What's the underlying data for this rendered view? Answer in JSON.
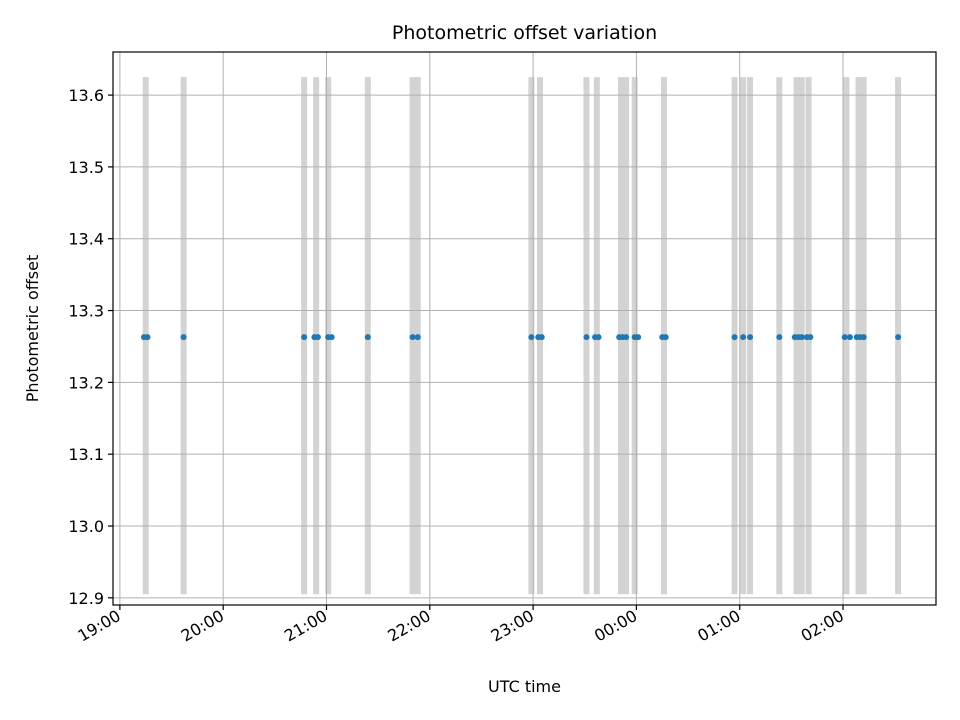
{
  "chart_data": {
    "type": "scatter",
    "title": "Photometric offset variation",
    "xlabel": "UTC time",
    "ylabel": "Photometric offset",
    "x_tick_labels": [
      "19:00",
      "20:00",
      "21:00",
      "22:00",
      "23:00",
      "00:00",
      "01:00",
      "02:00"
    ],
    "y_tick_labels": [
      "12.9",
      "13.0",
      "13.1",
      "13.2",
      "13.3",
      "13.4",
      "13.5",
      "13.6"
    ],
    "xlim": [
      "18:56",
      "02:54"
    ],
    "ylim": [
      12.89,
      13.66
    ],
    "grid": true,
    "band_range": [
      12.905,
      13.625
    ],
    "bands_x": [
      "19:15",
      "19:37",
      "20:47",
      "20:54",
      "21:01",
      "21:24",
      "21:50",
      "21:53",
      "22:59",
      "23:04",
      "23:31",
      "23:37",
      "23:51",
      "23:54",
      "23:59",
      "00:16",
      "00:57",
      "01:02",
      "01:06",
      "01:23",
      "01:33",
      "01:36",
      "01:40",
      "02:02",
      "02:09",
      "02:12",
      "02:32"
    ],
    "series": [
      {
        "color": "#1f77b4",
        "x": [
          "19:14",
          "19:16",
          "19:37",
          "20:47",
          "20:53",
          "20:55",
          "21:01",
          "21:03",
          "21:24",
          "21:50",
          "21:53",
          "22:59",
          "23:03",
          "23:05",
          "23:31",
          "23:36",
          "23:38",
          "23:50",
          "23:52",
          "23:54",
          "23:59",
          "00:01",
          "00:15",
          "00:17",
          "00:57",
          "01:02",
          "01:06",
          "01:23",
          "01:32",
          "01:34",
          "01:36",
          "01:39",
          "01:41",
          "02:01",
          "02:04",
          "02:08",
          "02:10",
          "02:12",
          "02:32"
        ],
        "y": [
          13.263,
          13.263,
          13.263,
          13.263,
          13.263,
          13.263,
          13.263,
          13.263,
          13.263,
          13.263,
          13.263,
          13.263,
          13.263,
          13.263,
          13.263,
          13.263,
          13.263,
          13.263,
          13.263,
          13.263,
          13.263,
          13.263,
          13.263,
          13.263,
          13.263,
          13.263,
          13.263,
          13.263,
          13.263,
          13.263,
          13.263,
          13.263,
          13.263,
          13.263,
          13.263,
          13.263,
          13.263,
          13.263,
          13.263
        ]
      }
    ],
    "colors": {
      "band": "#d3d3d3",
      "grid": "#b0b0b0",
      "point": "#1f77b4"
    }
  }
}
